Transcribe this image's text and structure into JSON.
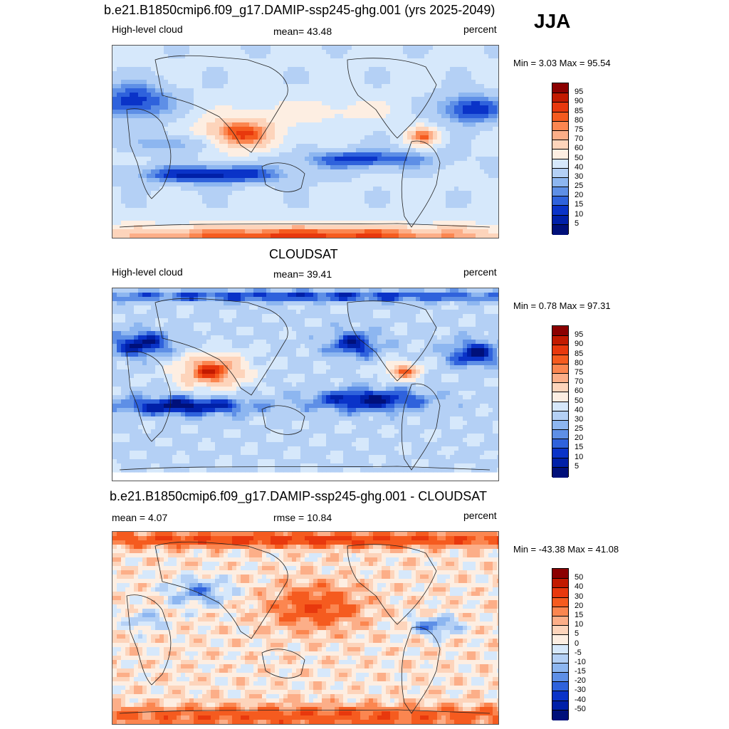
{
  "season": "JJA",
  "panels": [
    {
      "id": "model",
      "title": "b.e21.B1850cmip6.f09_g17.DAMIP-ssp245-ghg.001 (yrs 2025-2049)",
      "left_label": "High-level cloud",
      "center_label": "mean=  43.48",
      "right_label": "percent",
      "minmax": "Min =   3.03 Max =  95.54",
      "colorbar": {
        "labels": [
          "95",
          "90",
          "85",
          "80",
          "75",
          "70",
          "60",
          "50",
          "40",
          "30",
          "25",
          "20",
          "15",
          "10",
          "5"
        ],
        "colors": [
          "#8b0000",
          "#c21a00",
          "#e8380d",
          "#f55b1f",
          "#fb8650",
          "#fcae88",
          "#fdd4bb",
          "#fdeee2",
          "#d6e8fb",
          "#b4d0f5",
          "#8db6f0",
          "#5e8fe6",
          "#2f62dc",
          "#0a33c8",
          "#0020a8",
          "#00107a"
        ]
      },
      "field_type": "model"
    },
    {
      "id": "obs",
      "title": "CLOUDSAT",
      "left_label": "High-level cloud",
      "center_label": "mean=  39.41",
      "right_label": "percent",
      "minmax": "Min =   0.78 Max =  97.31",
      "colorbar": {
        "labels": [
          "95",
          "90",
          "85",
          "80",
          "75",
          "70",
          "60",
          "50",
          "40",
          "30",
          "25",
          "20",
          "15",
          "10",
          "5"
        ],
        "colors": [
          "#8b0000",
          "#c21a00",
          "#e8380d",
          "#f55b1f",
          "#fb8650",
          "#fcae88",
          "#fdd4bb",
          "#fdeee2",
          "#d6e8fb",
          "#b4d0f5",
          "#8db6f0",
          "#5e8fe6",
          "#2f62dc",
          "#0a33c8",
          "#0020a8",
          "#00107a"
        ]
      },
      "field_type": "obs"
    },
    {
      "id": "diff",
      "title": "b.e21.B1850cmip6.f09_g17.DAMIP-ssp245-ghg.001 - CLOUDSAT",
      "left_label": "mean =   4.07",
      "center_label": "rmse =  10.84",
      "right_label": "percent",
      "minmax": "Min = -43.38 Max =  41.08",
      "colorbar": {
        "labels": [
          "50",
          "40",
          "30",
          "20",
          "15",
          "10",
          "5",
          "0",
          "-5",
          "-10",
          "-15",
          "-20",
          "-30",
          "-40",
          "-50"
        ],
        "colors": [
          "#8b0000",
          "#c21a00",
          "#e8380d",
          "#f55b1f",
          "#fb8650",
          "#fcae88",
          "#fdd4bb",
          "#fdeee2",
          "#d6e8fb",
          "#b4d0f5",
          "#8db6f0",
          "#5e8fe6",
          "#2f62dc",
          "#0a33c8",
          "#0020a8",
          "#00107a"
        ]
      },
      "field_type": "diff"
    }
  ]
}
